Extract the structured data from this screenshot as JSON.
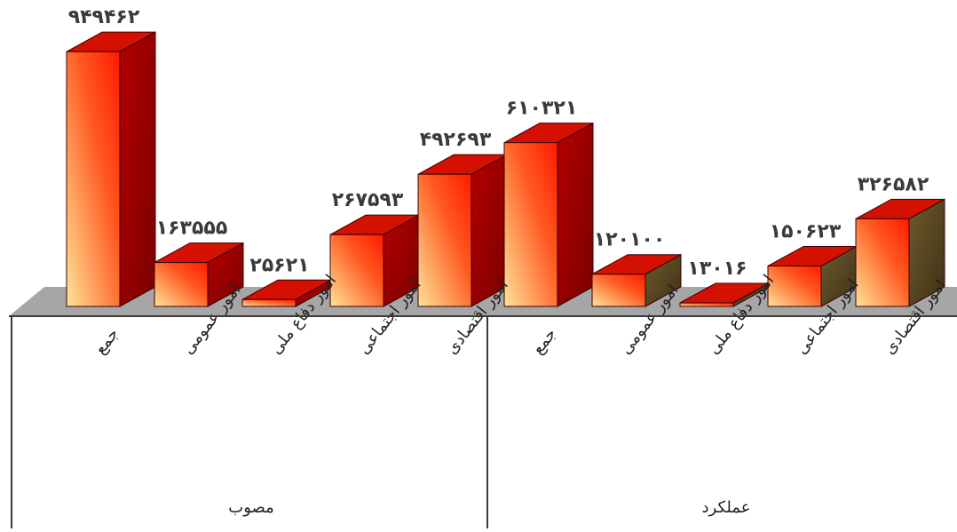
{
  "chart_data": {
    "type": "bar",
    "style": "3d-column",
    "title": "",
    "xlabel": "",
    "ylabel": "",
    "grid": false,
    "legend": "none",
    "ylim": [
      0,
      960000
    ],
    "groups": [
      {
        "name": "مصوب",
        "categories": [
          "جمع",
          "امور عمومی",
          "امور دفاع ملی",
          "امور اجتماعی",
          "امور اقتصادی"
        ],
        "values": [
          949462,
          163555,
          25621,
          267593,
          492693
        ],
        "value_labels": [
          "۹۴۹۴۶۲",
          "۱۶۳۵۵۵",
          "۲۵۶۲۱",
          "۲۶۷۵۹۳",
          "۴۹۲۶۹۳"
        ]
      },
      {
        "name": "عملکرد",
        "categories": [
          "جمع",
          "امور عمومی",
          "امور دفاع ملی",
          "امور اجتماعی",
          "امور اقتصادی"
        ],
        "values": [
          610321,
          120100,
          13016,
          150623,
          326582
        ],
        "value_labels": [
          "۶۱۰۳۲۱",
          "۱۲۰۱۰۰",
          "۱۳۰۱۶",
          "۱۵۰۶۲۳",
          "۳۲۶۵۸۲"
        ]
      }
    ],
    "colors": {
      "front_light": "#ffe39a",
      "front_dark": "#ff1a00",
      "side_dark": "#a00000",
      "top": "#d41000",
      "floor": "#a6a6a6",
      "axis": "#3a3a3a"
    }
  }
}
